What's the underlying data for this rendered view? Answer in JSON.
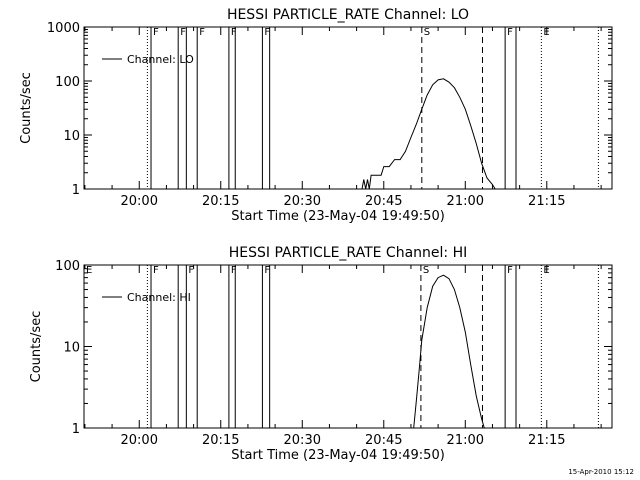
{
  "footer": {
    "timestamp": "15-Apr-2010 15:12"
  },
  "chart_data": [
    {
      "type": "line",
      "title": "HESSI PARTICLE_RATE Channel: LO",
      "xlabel": "Start Time (23-May-04 19:49:50)",
      "ylabel": "Counts/sec",
      "y_scale": "log",
      "xlim": [
        "19:49:50",
        "21:27:00"
      ],
      "ylim": [
        1,
        1000
      ],
      "x_ticks": [
        "20:00",
        "20:15",
        "20:30",
        "20:45",
        "21:00",
        "21:15"
      ],
      "y_ticks": [
        "1",
        "10",
        "100",
        "1000"
      ],
      "legend": {
        "position": "top-left",
        "entries": [
          "Channel: LO"
        ]
      },
      "series": [
        {
          "name": "Channel: LO",
          "x": [
            "20:41:00",
            "20:41:20",
            "20:41:40",
            "20:42:00",
            "20:42:20",
            "20:42:40",
            "20:43:00",
            "20:44:30",
            "20:45:00",
            "20:46:00",
            "20:47:00",
            "20:48:00",
            "20:49:00",
            "20:50:00",
            "20:51:00",
            "20:52:00",
            "20:53:00",
            "20:54:00",
            "20:55:00",
            "20:56:00",
            "20:57:00",
            "20:58:00",
            "20:59:00",
            "21:00:00",
            "21:01:00",
            "21:02:00",
            "21:03:00",
            "21:04:00",
            "21:05:00",
            "21:05:30"
          ],
          "y": [
            1,
            1.5,
            1,
            1.5,
            1,
            1.8,
            1.8,
            1.8,
            2.6,
            2.6,
            3.5,
            3.5,
            5,
            9,
            16,
            30,
            55,
            85,
            105,
            110,
            95,
            75,
            50,
            30,
            15,
            7,
            3,
            1.6,
            1.2,
            1
          ]
        }
      ],
      "markers": [
        {
          "label": "",
          "time": "20:01:30",
          "style": "dotted"
        },
        {
          "label": "F",
          "time": "20:02:10",
          "style": "solid"
        },
        {
          "label": "F",
          "time": "20:07:10",
          "style": "solid"
        },
        {
          "label": "",
          "time": "20:08:40",
          "style": "solid"
        },
        {
          "label": "F",
          "time": "20:10:40",
          "style": "solid"
        },
        {
          "label": "F",
          "time": "20:16:30",
          "style": "solid"
        },
        {
          "label": "",
          "time": "20:17:40",
          "style": "solid"
        },
        {
          "label": "F",
          "time": "20:22:40",
          "style": "solid"
        },
        {
          "label": "",
          "time": "20:24:00",
          "style": "solid"
        },
        {
          "label": "S",
          "time": "20:52:00",
          "style": "dashed"
        },
        {
          "label": "",
          "time": "21:03:10",
          "style": "dashed"
        },
        {
          "label": "F",
          "time": "21:07:20",
          "style": "solid"
        },
        {
          "label": "",
          "time": "21:09:20",
          "style": "solid"
        },
        {
          "label": "E",
          "time": "21:14:00",
          "style": "dotted"
        },
        {
          "label": "",
          "time": "21:24:30",
          "style": "dotted"
        }
      ],
      "grid": false
    },
    {
      "type": "line",
      "title": "HESSI PARTICLE_RATE Channel: HI",
      "xlabel": "Start Time (23-May-04 19:49:50)",
      "ylabel": "Counts/sec",
      "y_scale": "log",
      "xlim": [
        "19:49:50",
        "21:27:00"
      ],
      "ylim": [
        1,
        100
      ],
      "x_ticks": [
        "20:00",
        "20:15",
        "20:30",
        "20:45",
        "21:00",
        "21:15"
      ],
      "y_ticks": [
        "1",
        "10",
        "100"
      ],
      "legend": {
        "position": "top-left",
        "entries": [
          "Channel: HI"
        ]
      },
      "series": [
        {
          "name": "Channel: HI",
          "x": [
            "20:50:30",
            "20:51:00",
            "20:51:30",
            "20:52:00",
            "20:53:00",
            "20:54:00",
            "20:55:00",
            "20:56:00",
            "20:57:00",
            "20:58:00",
            "20:59:00",
            "21:00:00",
            "21:01:00",
            "21:02:00",
            "21:02:30",
            "21:03:00",
            "21:03:30"
          ],
          "y": [
            1,
            2.2,
            5,
            12,
            30,
            55,
            70,
            75,
            68,
            50,
            30,
            15,
            6,
            2.5,
            1.8,
            1.3,
            1
          ]
        }
      ],
      "markers": [
        {
          "label": "E",
          "time": "19:49:50",
          "style": "none"
        },
        {
          "label": "",
          "time": "20:01:30",
          "style": "dotted"
        },
        {
          "label": "F",
          "time": "20:02:10",
          "style": "solid"
        },
        {
          "label": "",
          "time": "20:07:10",
          "style": "solid"
        },
        {
          "label": "F",
          "time": "20:08:40",
          "style": "solid"
        },
        {
          "label": "",
          "time": "20:10:40",
          "style": "solid"
        },
        {
          "label": "F",
          "time": "20:16:30",
          "style": "solid"
        },
        {
          "label": "",
          "time": "20:17:40",
          "style": "solid"
        },
        {
          "label": "F",
          "time": "20:22:40",
          "style": "solid"
        },
        {
          "label": "",
          "time": "20:24:00",
          "style": "solid"
        },
        {
          "label": "S",
          "time": "20:51:50",
          "style": "dashed"
        },
        {
          "label": "",
          "time": "21:03:10",
          "style": "dashed"
        },
        {
          "label": "F",
          "time": "21:07:20",
          "style": "solid"
        },
        {
          "label": "",
          "time": "21:09:20",
          "style": "solid"
        },
        {
          "label": "E",
          "time": "21:14:00",
          "style": "dotted"
        },
        {
          "label": "",
          "time": "21:24:30",
          "style": "dotted"
        }
      ],
      "grid": false
    }
  ]
}
